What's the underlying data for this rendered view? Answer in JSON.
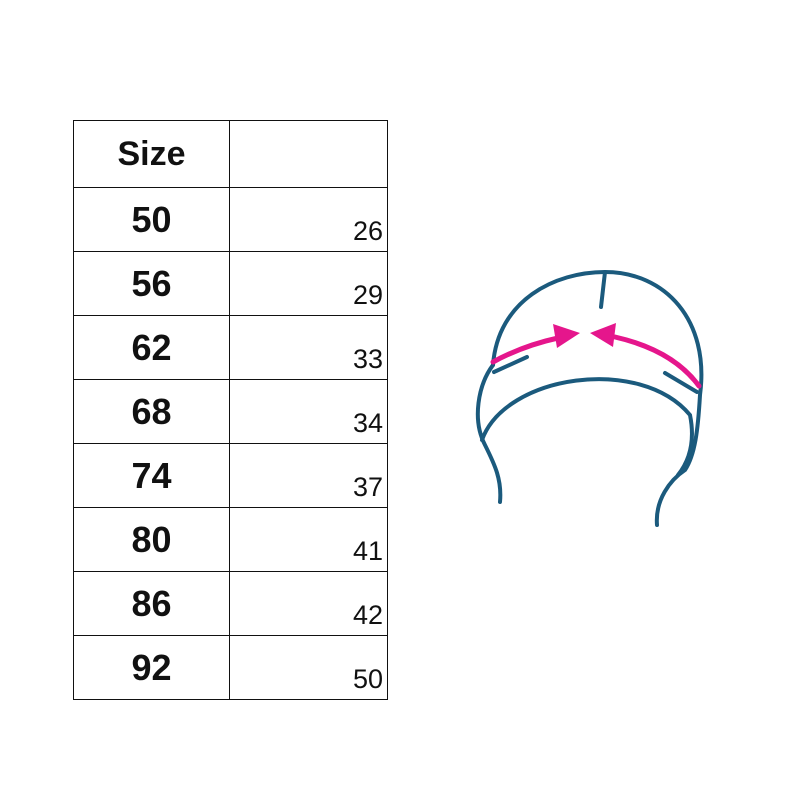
{
  "table": {
    "header": {
      "size": "Size",
      "measure": ""
    },
    "rows": [
      {
        "size": "50",
        "value": "26"
      },
      {
        "size": "56",
        "value": "29"
      },
      {
        "size": "62",
        "value": "33"
      },
      {
        "size": "68",
        "value": "34"
      },
      {
        "size": "74",
        "value": "37"
      },
      {
        "size": "80",
        "value": "41"
      },
      {
        "size": "86",
        "value": "42"
      },
      {
        "size": "92",
        "value": "50"
      }
    ]
  },
  "illustration": {
    "icon": "hat-head-circumference-icon",
    "outline_color": "#1b5a7d",
    "arrow_color": "#e5168c"
  }
}
